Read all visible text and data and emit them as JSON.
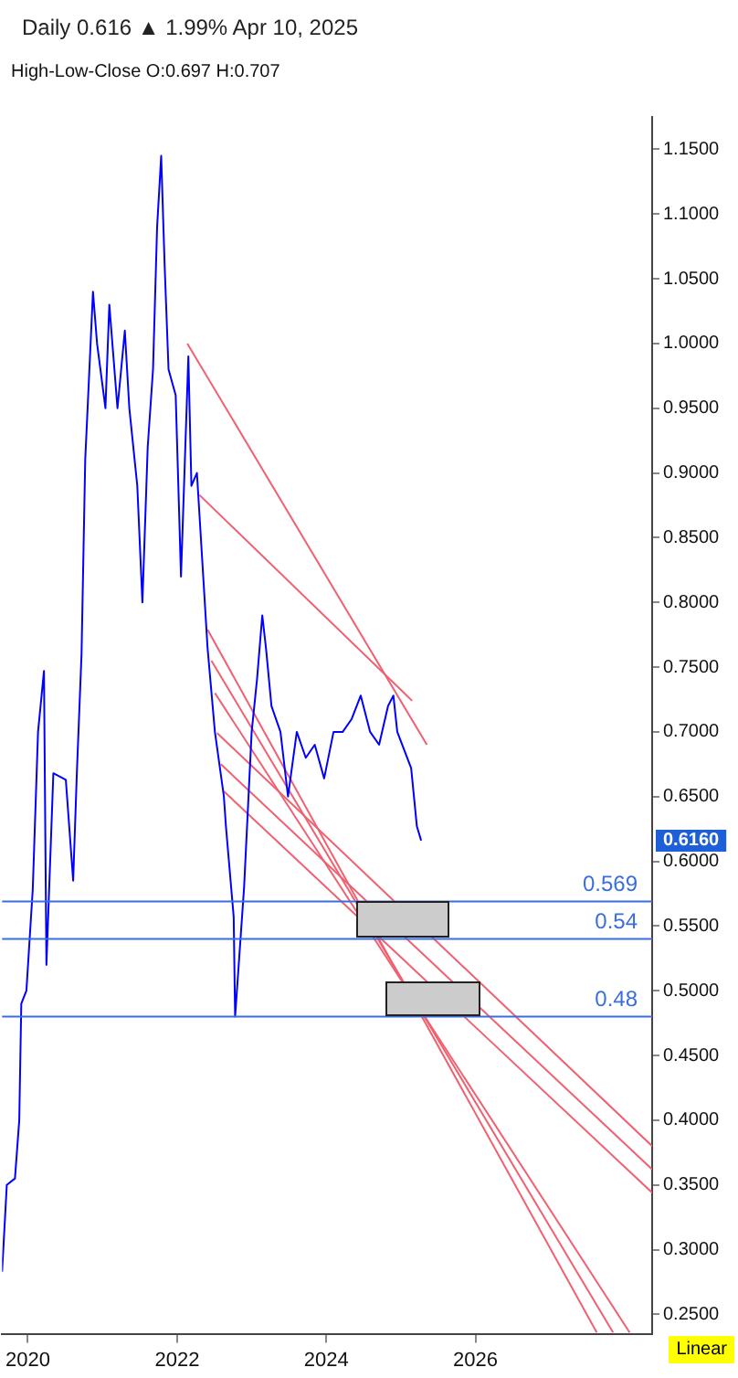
{
  "chart_data": {
    "type": "line",
    "title": "Daily 0.616 ▲ 1.99% Apr 10, 2025",
    "subtitle": "High-Low-Close O:0.697 H:0.707",
    "xlim": [
      "2019-08-28",
      "2028-05-15"
    ],
    "xticks": [
      {
        "value": "2020-01-01",
        "label": "2020"
      },
      {
        "value": "2022-01-01",
        "label": "2022"
      },
      {
        "value": "2024-01-01",
        "label": "2024"
      },
      {
        "value": "2026-01-01",
        "label": "2026"
      }
    ],
    "ylim": [
      0.235,
      1.175
    ],
    "yticks": [
      {
        "value": 0.25,
        "label": "0.2500"
      },
      {
        "value": 0.3,
        "label": "0.3000"
      },
      {
        "value": 0.35,
        "label": "0.3500"
      },
      {
        "value": 0.4,
        "label": "0.4000"
      },
      {
        "value": 0.45,
        "label": "0.4500"
      },
      {
        "value": 0.5,
        "label": "0.5000"
      },
      {
        "value": 0.55,
        "label": "0.5500"
      },
      {
        "value": 0.6,
        "label": "0.6000"
      },
      {
        "value": 0.65,
        "label": "0.6500"
      },
      {
        "value": 0.7,
        "label": "0.7000"
      },
      {
        "value": 0.75,
        "label": "0.7500"
      },
      {
        "value": 0.8,
        "label": "0.8000"
      },
      {
        "value": 0.85,
        "label": "0.8500"
      },
      {
        "value": 0.9,
        "label": "0.9000"
      },
      {
        "value": 0.95,
        "label": "0.9500"
      },
      {
        "value": 1.0,
        "label": "1.0000"
      },
      {
        "value": 1.05,
        "label": "1.0500"
      },
      {
        "value": 1.1,
        "label": "1.1000"
      },
      {
        "value": 1.15,
        "label": "1.1500"
      }
    ],
    "grid": false,
    "legend": false,
    "marker": "none",
    "line_style": "solid",
    "series": [
      {
        "color": "#0000ff",
        "x": [
          "2019-08-28",
          "2019-09-20",
          "2019-10-30",
          "2019-11-20",
          "2019-11-30",
          "2019-12-25",
          "2020-01-25",
          "2020-02-20",
          "2020-03-20",
          "2020-04-01",
          "2020-05-05",
          "2020-07-05",
          "2020-08-10",
          "2020-08-28",
          "2020-09-20",
          "2020-10-08",
          "2020-11-15",
          "2020-12-05",
          "2021-01-15",
          "2021-02-03",
          "2021-03-15",
          "2021-04-20",
          "2021-05-12",
          "2021-06-20",
          "2021-07-15",
          "2021-08-10",
          "2021-09-05",
          "2021-09-25",
          "2021-10-15",
          "2021-11-01",
          "2021-11-20",
          "2021-12-25",
          "2022-01-20",
          "2022-02-25",
          "2022-03-12",
          "2022-04-08",
          "2022-05-05",
          "2022-05-30",
          "2022-07-05",
          "2022-08-18",
          "2022-08-28",
          "2022-10-05",
          "2022-10-12",
          "2022-11-25",
          "2023-01-01",
          "2023-01-27",
          "2023-02-22",
          "2023-03-12",
          "2023-04-08",
          "2023-05-22",
          "2023-06-28",
          "2023-08-10",
          "2023-09-23",
          "2023-11-06",
          "2023-12-22",
          "2024-02-06",
          "2024-03-22",
          "2024-05-05",
          "2024-06-18",
          "2024-08-03",
          "2024-09-16",
          "2024-10-30",
          "2024-11-25",
          "2024-12-14",
          "2025-02-20",
          "2025-03-20",
          "2025-04-10"
        ],
        "values": [
          0.283,
          0.35,
          0.355,
          0.4,
          0.49,
          0.5,
          0.578,
          0.7,
          0.747,
          0.52,
          0.668,
          0.663,
          0.585,
          0.668,
          0.76,
          0.91,
          1.04,
          1.0,
          0.95,
          1.03,
          0.95,
          1.01,
          0.95,
          0.89,
          0.8,
          0.92,
          0.98,
          1.09,
          1.145,
          1.06,
          0.98,
          0.96,
          0.82,
          0.99,
          0.89,
          0.9,
          0.83,
          0.765,
          0.7,
          0.65,
          0.627,
          0.557,
          0.48,
          0.58,
          0.7,
          0.74,
          0.79,
          0.765,
          0.72,
          0.7,
          0.65,
          0.7,
          0.68,
          0.69,
          0.664,
          0.7,
          0.7,
          0.71,
          0.728,
          0.7,
          0.69,
          0.72,
          0.728,
          0.7,
          0.672,
          0.627,
          0.616
        ]
      },
      {
        "color": "#f06070",
        "x": [
          "2022-02-20",
          "2025-05-08"
        ],
        "values": [
          1.0,
          0.69
        ]
      },
      {
        "color": "#f06070",
        "x": [
          "2022-04-20",
          "2025-02-25"
        ],
        "values": [
          0.883,
          0.724
        ]
      },
      {
        "color": "#f06070",
        "x": [
          "2022-05-30",
          "2027-08-18"
        ],
        "values": [
          0.779,
          0.236
        ]
      },
      {
        "color": "#f06070",
        "x": [
          "2022-06-18",
          "2027-11-06"
        ],
        "values": [
          0.755,
          0.236
        ]
      },
      {
        "color": "#f06070",
        "x": [
          "2022-07-05",
          "2028-01-26"
        ],
        "values": [
          0.73,
          0.236
        ]
      },
      {
        "color": "#f06070",
        "x": [
          "2022-07-16",
          "2028-05-15"
        ],
        "values": [
          0.699,
          0.38
        ]
      },
      {
        "color": "#f06070",
        "x": [
          "2022-08-03",
          "2028-05-15"
        ],
        "values": [
          0.675,
          0.362
        ]
      },
      {
        "color": "#f06070",
        "x": [
          "2022-08-18",
          "2028-05-15"
        ],
        "values": [
          0.654,
          0.344
        ]
      }
    ],
    "ref_lines": [
      {
        "axis": "y",
        "value": 0.569,
        "label": "0.569",
        "color": "#3a6ee0"
      },
      {
        "axis": "y",
        "value": 0.54,
        "label": "0.54",
        "color": "#3a6ee0"
      },
      {
        "axis": "y",
        "value": 0.48,
        "label": "0.48",
        "color": "#3a6ee0"
      }
    ],
    "annotations": [
      {
        "text": "0.6160",
        "y": 0.616
      },
      "Linear"
    ]
  }
}
